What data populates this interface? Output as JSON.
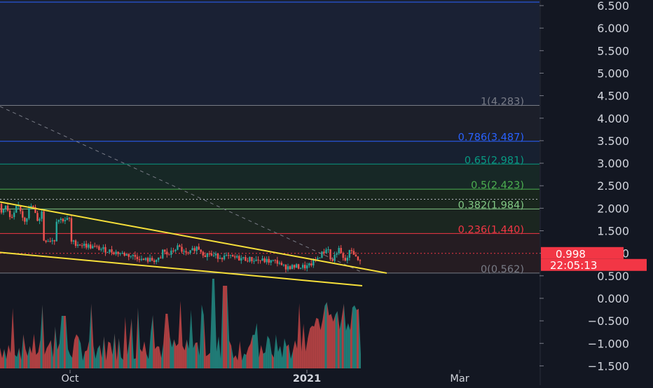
{
  "chart_data": {
    "type": "candlestick",
    "y_axis": {
      "ticks": [
        "6.500",
        "6.000",
        "5.500",
        "5.000",
        "4.500",
        "4.000",
        "3.500",
        "3.000",
        "2.500",
        "2.000",
        "1.500",
        "1.000",
        "0.500",
        "0.000",
        "−0.500",
        "−1.000",
        "−1.500"
      ],
      "tick_values": [
        6.5,
        6.0,
        5.5,
        5.0,
        4.5,
        4.0,
        3.5,
        3.0,
        2.5,
        2.0,
        1.5,
        1.0,
        0.5,
        0.0,
        -0.5,
        -1.0,
        -1.5
      ],
      "range": [
        -1.6,
        6.6
      ],
      "position": "right"
    },
    "x_axis": {
      "ticks": [
        "Oct",
        "2021",
        "Mar"
      ],
      "bold_ticks": [
        "2021"
      ]
    },
    "fib_levels": [
      {
        "label": "1(4.283)",
        "value": 4.283,
        "color": "#787b86"
      },
      {
        "label": "0.786(3.487)",
        "value": 3.487,
        "color": "#2962ff"
      },
      {
        "label": "0.65(2.981)",
        "value": 2.981,
        "color": "#089981"
      },
      {
        "label": "0.5(2.423)",
        "value": 2.423,
        "color": "#4caf50"
      },
      {
        "label": "0.382(1.984)",
        "value": 1.984,
        "color": "#81c784"
      },
      {
        "label": "0.236(1.440)",
        "value": 1.44,
        "color": "#f23645"
      },
      {
        "label": "0(0.562)",
        "value": 0.562,
        "color": "#787b86"
      }
    ],
    "price_badge": {
      "value": "0.998",
      "countdown": "22:05:13",
      "color": "#f23645"
    },
    "trendlines": [
      {
        "from": [
          0,
          2.14
        ],
        "to": [
          552,
          0.56
        ],
        "color": "#f7e03a"
      },
      {
        "from": [
          0,
          1.02
        ],
        "to": [
          517,
          0.28
        ],
        "color": "#f7e03a"
      }
    ],
    "colors": {
      "up": "#26a69a",
      "down": "#ef5350",
      "background": "#131722",
      "dashed_line": "#787b86"
    }
  }
}
